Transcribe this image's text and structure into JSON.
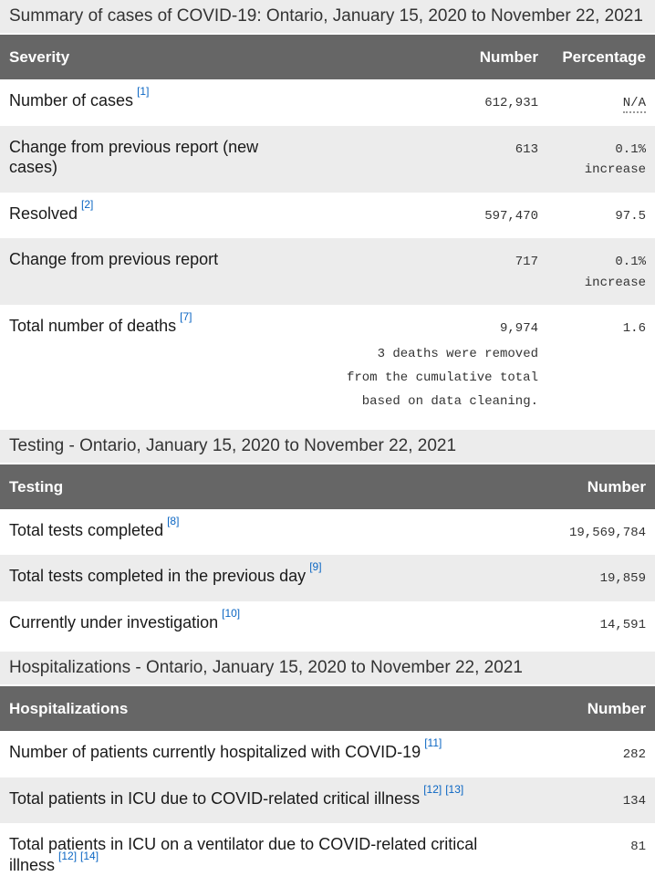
{
  "colors": {
    "header_bg": "#666666",
    "header_text": "#ffffff",
    "stripe_bg": "#ececec",
    "caption_bg": "#ececec",
    "link_blue": "#0b66c3",
    "body_text": "#1a1a1a",
    "mono_text": "#333333"
  },
  "sections": [
    {
      "caption": "Summary of cases of COVID-19: Ontario, January 15, 2020 to November 22, 2021",
      "columns": [
        "Severity",
        "Number",
        "Percentage"
      ],
      "rows": [
        {
          "label": "Number of cases",
          "refs": [
            "[1]"
          ],
          "number": "612,931",
          "percentage": "N/A",
          "percentage_abbr": true
        },
        {
          "label": "Change from previous report (new cases)",
          "refs": [],
          "number": "613",
          "percentage": "0.1% increase"
        },
        {
          "label": "Resolved",
          "refs": [
            "[2]"
          ],
          "number": "597,470",
          "percentage": "97.5"
        },
        {
          "label": "Change from previous report",
          "refs": [],
          "number": "717",
          "percentage": "0.1% increase"
        },
        {
          "label": "Total number of deaths",
          "refs": [
            "[7]"
          ],
          "number": "9,974",
          "number_note_lines": [
            "3 deaths were removed",
            "from the cumulative total",
            "based on data cleaning."
          ],
          "percentage": "1.6"
        }
      ]
    },
    {
      "caption": "Testing - Ontario, January 15, 2020 to November 22, 2021",
      "columns": [
        "Testing",
        "Number"
      ],
      "rows": [
        {
          "label": "Total tests completed",
          "refs": [
            "[8]"
          ],
          "number": "19,569,784"
        },
        {
          "label": "Total tests completed in the previous day",
          "refs": [
            "[9]"
          ],
          "number": "19,859"
        },
        {
          "label": "Currently under investigation",
          "refs": [
            "[10]"
          ],
          "number": "14,591"
        }
      ]
    },
    {
      "caption": "Hospitalizations - Ontario, January 15, 2020 to November 22, 2021",
      "columns": [
        "Hospitalizations",
        "Number"
      ],
      "rows": [
        {
          "label": "Number of patients currently hospitalized with COVID-19",
          "refs": [
            "[11]"
          ],
          "number": "282"
        },
        {
          "label": "Total patients in ICU due to COVID-related critical illness",
          "refs": [
            "[12]",
            "[13]"
          ],
          "number": "134"
        },
        {
          "label": "Total patients in ICU on a ventilator due to COVID-related critical illness",
          "refs": [
            "[12]",
            "[14]"
          ],
          "number": "81"
        }
      ]
    }
  ]
}
